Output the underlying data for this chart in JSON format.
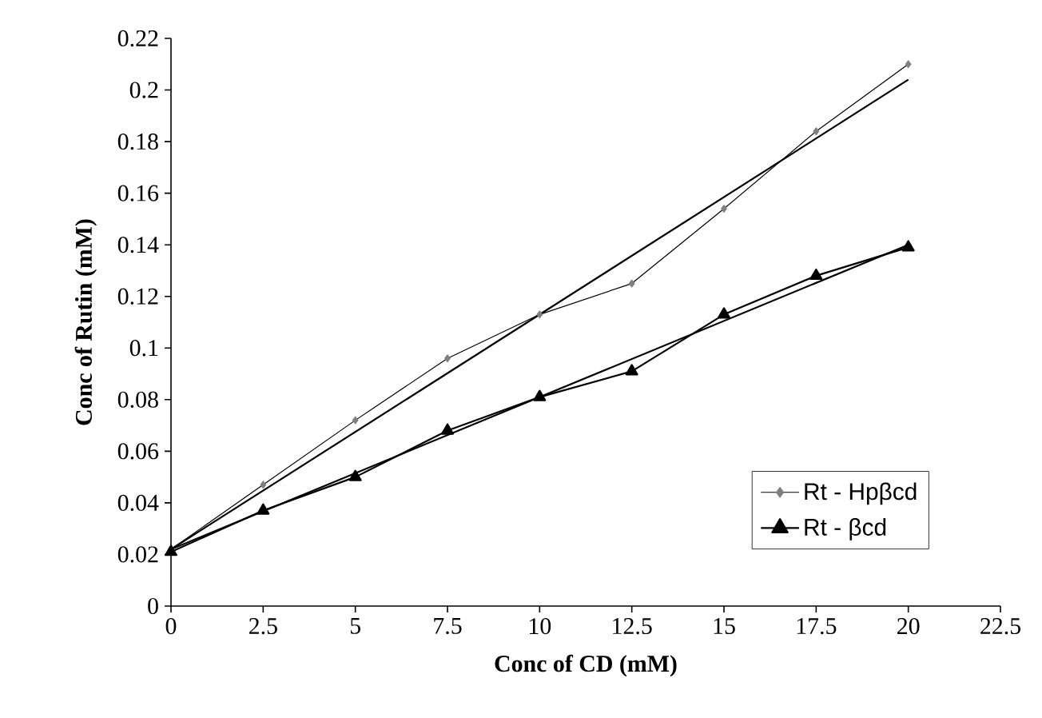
{
  "chart_data": {
    "type": "line",
    "xlabel": "Conc of CD (mM)",
    "ylabel": "Conc of Rutin (mM)",
    "xlim": [
      0,
      22.5
    ],
    "xticks": [
      0,
      2.5,
      5,
      7.5,
      10,
      12.5,
      15,
      17.5,
      20,
      22.5
    ],
    "ylim": [
      0,
      0.22
    ],
    "yticks": [
      0,
      0.02,
      0.04,
      0.06,
      0.08,
      0.1,
      0.12,
      0.14,
      0.16,
      0.18,
      0.2,
      0.22
    ],
    "grid": false,
    "legend": "bottom right",
    "series": [
      {
        "name": "Rt - Hpβcd",
        "color": "#000000",
        "marker": "diamond",
        "x": [
          0,
          2.5,
          5,
          7.5,
          10,
          12.5,
          15,
          17.5,
          20
        ],
        "values": [
          0.022,
          0.047,
          0.072,
          0.096,
          0.113,
          0.125,
          0.154,
          0.184,
          0.21
        ]
      },
      {
        "name": "Rt - βcd",
        "color": "#000000",
        "marker": "triangle",
        "x": [
          0,
          2.5,
          5,
          7.5,
          10,
          12.5,
          15,
          17.5,
          20
        ],
        "values": [
          0.021,
          0.037,
          0.05,
          0.068,
          0.081,
          0.091,
          0.113,
          0.128,
          0.139
        ]
      },
      {
        "type": "line",
        "color": "#000000",
        "marker": "none",
        "x": [
          0,
          20
        ],
        "values": [
          0.022,
          0.204
        ]
      },
      {
        "type": "line",
        "color": "#000000",
        "marker": "none",
        "x": [
          0,
          20
        ],
        "values": [
          0.022,
          0.14
        ]
      }
    ]
  }
}
